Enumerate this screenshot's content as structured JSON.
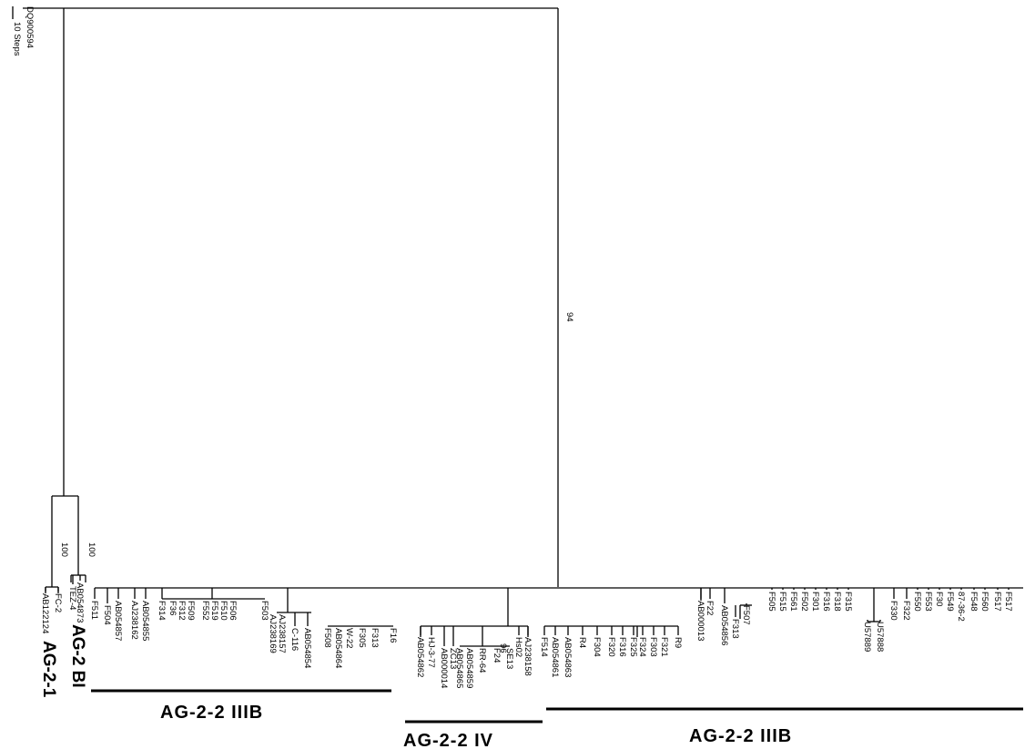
{
  "scale_bar": {
    "label": "10 Steps"
  },
  "outgroup": "DQ900594",
  "bootstrap": {
    "root_branch": "94",
    "ag21_clade": "100",
    "agbi_clade": "100",
    "ag22iv_node": "96"
  },
  "ag2_1_leaves": [
    "AB054873",
    "TEZ-4",
    "FC-2",
    "AB122124"
  ],
  "ag2_1_label": "AG-2-1",
  "ag2_bi_label": "AG-2 BI",
  "clusterA": {
    "leaves": [
      "F511",
      "F504",
      "AB054857",
      "AJ238162",
      "AB054855",
      "F314",
      "F36",
      "F312",
      "F509",
      "F552",
      "F519",
      "F510",
      "F506",
      "F503",
      "AJ238169",
      "AJ238157",
      "C-116",
      "AB054854",
      "F508",
      "AB054864",
      "W-22",
      "F305",
      "F313",
      "F16"
    ],
    "label": "AG-2-2 IIIB"
  },
  "clusterB": {
    "leaves": [
      "AB054862",
      "HJ-3-77",
      "AB000014",
      "ZC13",
      "AB054865",
      "AB054859",
      "RR-64",
      "F24",
      "SE13",
      "Hs02",
      "AJ238158",
      "F514"
    ],
    "label": "AG-2-2 IV"
  },
  "clusterC": {
    "leaves": [
      "AB054861",
      "AB054863",
      "R4",
      "F304",
      "F320",
      "F316",
      "F325",
      "F324",
      "F303",
      "F321",
      "R9",
      "AB000013",
      "F22",
      "AB054856",
      "F313",
      "F507",
      "F505",
      "F515",
      "F561",
      "F502",
      "F301",
      "F316",
      "F318",
      "F315",
      "U57889",
      "U57888",
      "F330",
      "F322",
      "F550",
      "F553",
      "F30",
      "F549",
      "87-36-2",
      "F548",
      "F560",
      "F517",
      "F517"
    ],
    "label": "AG-2-2 IIIB"
  }
}
